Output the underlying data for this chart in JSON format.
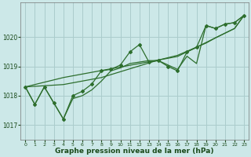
{
  "title": "Graphe pression niveau de la mer (hPa)",
  "bg_color": "#cce8e8",
  "grid_color": "#aacccc",
  "line_color": "#2d6e2d",
  "xlim": [
    -0.5,
    23.5
  ],
  "ylim": [
    1016.5,
    1021.2
  ],
  "yticks": [
    1017,
    1018,
    1019,
    1020
  ],
  "xticks": [
    0,
    1,
    2,
    3,
    4,
    5,
    6,
    7,
    8,
    9,
    10,
    11,
    12,
    13,
    14,
    15,
    16,
    17,
    18,
    19,
    20,
    21,
    22,
    23
  ],
  "x_data": [
    0,
    1,
    2,
    3,
    4,
    5,
    6,
    7,
    8,
    9,
    10,
    11,
    12,
    13,
    14,
    15,
    16,
    17,
    18,
    19,
    20,
    21,
    22,
    23
  ],
  "y_main": [
    1018.3,
    1017.7,
    1018.3,
    1017.75,
    1017.2,
    1018.0,
    1018.15,
    1018.4,
    1018.85,
    1018.9,
    1019.05,
    1019.5,
    1019.75,
    1019.15,
    1019.2,
    1019.0,
    1018.85,
    1019.5,
    1019.65,
    1020.4,
    1020.3,
    1020.45,
    1020.5,
    1020.75
  ],
  "y_line2": [
    1018.3,
    1017.7,
    1018.3,
    1017.75,
    1017.2,
    1017.9,
    1018.0,
    1018.2,
    1018.5,
    1018.85,
    1018.95,
    1019.1,
    1019.15,
    1019.2,
    1019.2,
    1019.05,
    1018.9,
    1019.35,
    1019.1,
    1020.4,
    1020.3,
    1020.45,
    1020.5,
    1020.75
  ],
  "y_trend1": [
    1018.3,
    1018.38,
    1018.46,
    1018.54,
    1018.62,
    1018.68,
    1018.74,
    1018.8,
    1018.86,
    1018.92,
    1018.98,
    1019.04,
    1019.1,
    1019.16,
    1019.22,
    1019.28,
    1019.34,
    1019.5,
    1019.66,
    1019.82,
    1019.98,
    1020.14,
    1020.3,
    1020.75
  ],
  "y_trend2": [
    1018.3,
    1018.32,
    1018.34,
    1018.36,
    1018.38,
    1018.44,
    1018.5,
    1018.56,
    1018.62,
    1018.72,
    1018.82,
    1018.92,
    1019.02,
    1019.12,
    1019.22,
    1019.3,
    1019.38,
    1019.52,
    1019.66,
    1019.8,
    1019.98,
    1020.14,
    1020.3,
    1020.75
  ]
}
